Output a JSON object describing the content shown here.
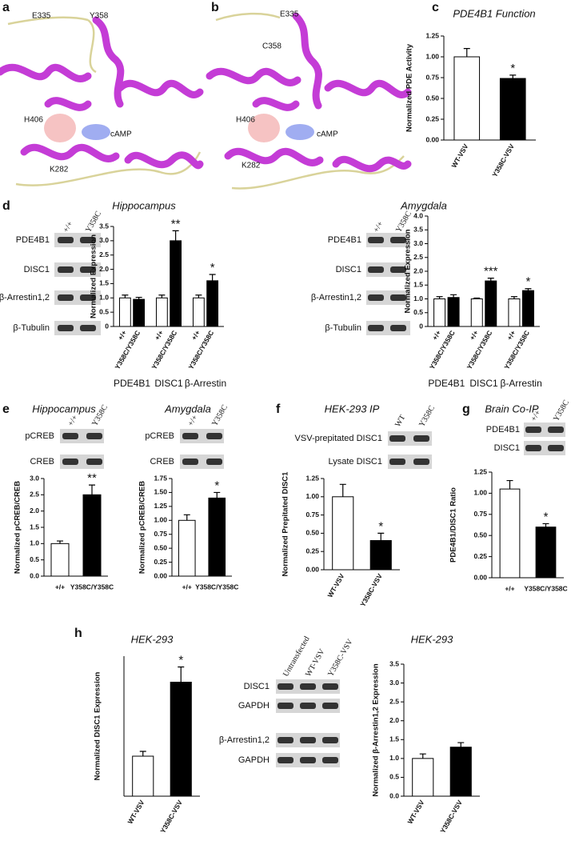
{
  "panel_labels": [
    "a",
    "b",
    "c",
    "d",
    "e",
    "f",
    "g",
    "h"
  ],
  "structures": [
    {
      "labels": [
        "E335",
        "Y358",
        "H406",
        "cAMP",
        "K282"
      ]
    },
    {
      "labels": [
        "E335",
        "C358",
        "H406",
        "cAMP",
        "K282"
      ]
    }
  ],
  "blots": [
    {
      "lanes": [
        "+/+",
        "Y358C"
      ],
      "rows": [
        "PDE4B1",
        "DISC1",
        "β-Arrestin1,2",
        "β-Tubulin"
      ]
    },
    {
      "lanes": [
        "+/+",
        "Y358C"
      ],
      "rows": [
        "PDE4B1",
        "DISC1",
        "β-Arrestin1,2",
        "β-Tubulin"
      ]
    },
    {
      "lanes": [
        "+/+",
        "Y358C"
      ],
      "rows": [
        "pCREB",
        "CREB"
      ]
    },
    {
      "lanes": [
        "+/+",
        "Y358C"
      ],
      "rows": [
        "pCREB",
        "CREB"
      ]
    },
    {
      "lanes": [
        "WT",
        "Y358C"
      ],
      "rows": [
        "VSV-prepitated DISC1",
        "Lysate DISC1"
      ]
    },
    {
      "lanes": [
        "+/+",
        "Y358C"
      ],
      "rows": [
        "PDE4B1",
        "DISC1"
      ]
    },
    {
      "lanes": [
        "Untransfected",
        "WT-VSV",
        "Y358C-VSV"
      ],
      "rows": [
        "DISC1",
        "GAPDH",
        "β-Arrestin1,2",
        "GAPDH"
      ]
    }
  ],
  "chart_data": [
    {
      "type": "bar",
      "title": "PDE4B1 Function",
      "y_label": "Normalized PDE Activity",
      "categories": [
        "WT-VSV",
        "Y358C-VSV"
      ],
      "values": [
        1.0,
        0.74
      ],
      "errors": [
        0.1,
        0.04
      ],
      "colors": [
        "#ffffff",
        "#000000"
      ],
      "ylim": [
        0,
        1.25
      ],
      "yticks": [
        {
          "value": 0,
          "label": "0.00"
        },
        0.25,
        {
          "value": 0.5,
          "label": "0.50"
        },
        0.75,
        {
          "value": 1,
          "label": "1.00"
        },
        1.25
      ],
      "annotations": [
        {
          "category": "Y358C-VSV",
          "text": "*"
        }
      ]
    },
    {
      "type": "grouped_bar",
      "title": "Hippocampus",
      "y_label": "Normalized Expression",
      "categories": [
        "PDE4B1",
        "DISC1",
        "β-Arrestin"
      ],
      "series": [
        {
          "name": "+/+",
          "color": "#ffffff",
          "values": [
            1.0,
            1.0,
            1.0
          ],
          "errors": [
            0.1,
            0.1,
            0.1
          ]
        },
        {
          "name": "Y358C/Y358C",
          "color": "#000000",
          "values": [
            0.95,
            3.0,
            1.6
          ],
          "errors": [
            0.07,
            0.35,
            0.22
          ]
        }
      ],
      "ylim": [
        0,
        3.5
      ],
      "yticks": [
        0,
        0.5,
        {
          "value": 1,
          "label": "1.0"
        },
        1.5,
        {
          "value": 2,
          "label": "2.0"
        },
        2.5,
        {
          "value": 3,
          "label": "3.0"
        },
        3.5
      ],
      "annotations": [
        {
          "series": "Y358C/Y358C",
          "category": "DISC1",
          "text": "**"
        },
        {
          "series": "Y358C/Y358C",
          "category": "β-Arrestin",
          "text": "*"
        }
      ]
    },
    {
      "type": "grouped_bar",
      "title": "Amygdala",
      "y_label": "Normalized Expression",
      "categories": [
        "PDE4B1",
        "DISC1",
        "β-Arrestin"
      ],
      "series": [
        {
          "name": "+/+",
          "color": "#ffffff",
          "values": [
            1.0,
            1.0,
            1.0
          ],
          "errors": [
            0.08,
            0.03,
            0.08
          ]
        },
        {
          "name": "Y358C/Y358C",
          "color": "#000000",
          "values": [
            1.05,
            1.65,
            1.3
          ],
          "errors": [
            0.1,
            0.1,
            0.07
          ]
        }
      ],
      "ylim": [
        0,
        4
      ],
      "yticks": [
        0,
        0.5,
        {
          "value": 1,
          "label": "1.0"
        },
        1.5,
        {
          "value": 2,
          "label": "2.0"
        },
        2.5,
        {
          "value": 3,
          "label": "3.0"
        },
        3.5,
        {
          "value": 4,
          "label": "4.0"
        }
      ],
      "annotations": [
        {
          "series": "Y358C/Y358C",
          "category": "DISC1",
          "text": "***"
        },
        {
          "series": "Y358C/Y358C",
          "category": "β-Arrestin",
          "text": "*"
        }
      ]
    },
    {
      "type": "bar",
      "title": "Hippocampus",
      "y_label": "Normalized pCREB/CREB",
      "categories": [
        "+/+",
        "Y358C/Y358C"
      ],
      "values": [
        1.0,
        2.5
      ],
      "errors": [
        0.08,
        0.3
      ],
      "colors": [
        "#ffffff",
        "#000000"
      ],
      "ylim": [
        0,
        3
      ],
      "yticks": [
        {
          "value": 0,
          "label": "0.0"
        },
        0.5,
        {
          "value": 1,
          "label": "1.0"
        },
        1.5,
        {
          "value": 2,
          "label": "2.0"
        },
        2.5,
        {
          "value": 3,
          "label": "3.0"
        }
      ],
      "annotations": [
        {
          "category": "Y358C/Y358C",
          "text": "**"
        }
      ]
    },
    {
      "type": "bar",
      "title": "Amygdala",
      "y_label": "Normalized pCREB/CREB",
      "categories": [
        "+/+",
        "Y358C/Y358C"
      ],
      "values": [
        1.0,
        1.4
      ],
      "errors": [
        0.1,
        0.1
      ],
      "colors": [
        "#ffffff",
        "#000000"
      ],
      "ylim": [
        0,
        1.75
      ],
      "yticks": [
        {
          "value": 0,
          "label": "0.00"
        },
        0.25,
        {
          "value": 0.5,
          "label": "0.50"
        },
        0.75,
        {
          "value": 1,
          "label": "1.00"
        },
        1.25,
        {
          "value": 1.5,
          "label": "1.50"
        },
        1.75
      ],
      "annotations": [
        {
          "category": "Y358C/Y358C",
          "text": "*"
        }
      ]
    },
    {
      "type": "bar",
      "title": "HEK-293 IP",
      "y_label": "Normalized Prepitated DISC1",
      "categories": [
        "WT-VSV",
        "Y358C-VSV"
      ],
      "values": [
        1.0,
        0.4
      ],
      "errors": [
        0.17,
        0.1
      ],
      "colors": [
        "#ffffff",
        "#000000"
      ],
      "ylim": [
        0,
        1.25
      ],
      "yticks": [
        {
          "value": 0,
          "label": "0.00"
        },
        0.25,
        {
          "value": 0.5,
          "label": "0.50"
        },
        0.75,
        {
          "value": 1,
          "label": "1.00"
        },
        1.25
      ],
      "annotations": [
        {
          "category": "Y358C-VSV",
          "text": "*"
        }
      ]
    },
    {
      "type": "bar",
      "title": "Brain Co-IP",
      "y_label": "PDE4B1/DISC1 Ratio",
      "categories": [
        "+/+",
        "Y358C/Y358C"
      ],
      "values": [
        1.05,
        0.6
      ],
      "errors": [
        0.1,
        0.04
      ],
      "colors": [
        "#ffffff",
        "#000000"
      ],
      "ylim": [
        0,
        1.25
      ],
      "yticks": [
        {
          "value": 0,
          "label": "0.00"
        },
        0.25,
        {
          "value": 0.5,
          "label": "0.50"
        },
        0.75,
        {
          "value": 1,
          "label": "1.00"
        },
        1.25
      ],
      "annotations": [
        {
          "category": "Y358C/Y358C",
          "text": "*"
        }
      ]
    },
    {
      "type": "bar",
      "title": "HEK-293",
      "y_label": "Normalized DISC1 Expression",
      "categories": [
        "WT-VSV",
        "Y358C-VSV"
      ],
      "values": [
        1.0,
        2.85
      ],
      "errors": [
        0.12,
        0.38
      ],
      "colors": [
        "#ffffff",
        "#000000"
      ],
      "ylim": [
        0,
        3.5
      ],
      "annotations": [
        {
          "category": "Y358C-VSV",
          "text": "*"
        }
      ]
    },
    {
      "type": "bar",
      "title": "HEK-293",
      "y_label": "Normalized β-Arrestin1,2 Expression",
      "categories": [
        "WT-VSV",
        "Y358C-VSV"
      ],
      "values": [
        1.0,
        1.3
      ],
      "errors": [
        0.12,
        0.12
      ],
      "colors": [
        "#ffffff",
        "#000000"
      ],
      "ylim": [
        0,
        3.5
      ],
      "yticks": [
        {
          "value": 0,
          "label": "0.0"
        },
        0.5,
        {
          "value": 1,
          "label": "1.0"
        },
        1.5,
        {
          "value": 2,
          "label": "2.0"
        },
        2.5,
        {
          "value": 3,
          "label": "3.0"
        },
        3.5
      ]
    }
  ]
}
